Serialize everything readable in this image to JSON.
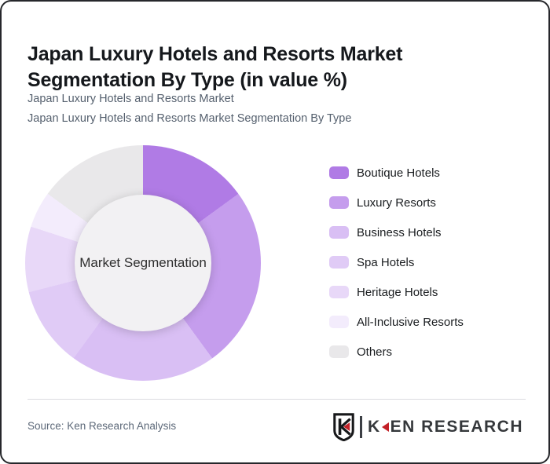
{
  "page": {
    "title": "Japan Luxury Hotels and Resorts Market Segmentation By Type (in value %)",
    "subtitle_line1": "Japan Luxury Hotels and Resorts Market",
    "subtitle_line2": "Japan Luxury Hotels and Resorts Market Segmentation By Type"
  },
  "chart_data": {
    "type": "pie",
    "variant": "donut",
    "title": "Japan Luxury Hotels and Resorts Market Segmentation By Type (in value %)",
    "center_label": "Market Segmentation",
    "unit": "value %",
    "start_angle_deg": 0,
    "direction": "clockwise",
    "legend_position": "right",
    "categories": [
      "Boutique Hotels",
      "Luxury Resorts",
      "Business Hotels",
      "Spa Hotels",
      "Heritage Hotels",
      "All-Inclusive Resorts",
      "Others"
    ],
    "values": [
      15,
      25,
      20,
      11,
      9,
      5,
      15
    ],
    "colors": [
      "#b07be5",
      "#c59ded",
      "#d9bff4",
      "#e0cbf6",
      "#e8d8f8",
      "#f3ecfc",
      "#e9e8ea"
    ],
    "hole_color": "#f2f1f3"
  },
  "footer": {
    "source_label": "Source: Ken Research Analysis",
    "logo": {
      "badge_letter": "K",
      "brand_k": "K",
      "brand_rest": "EN RESEARCH",
      "brand_full": "KEN RESEARCH",
      "accent_color": "#c32127"
    }
  }
}
